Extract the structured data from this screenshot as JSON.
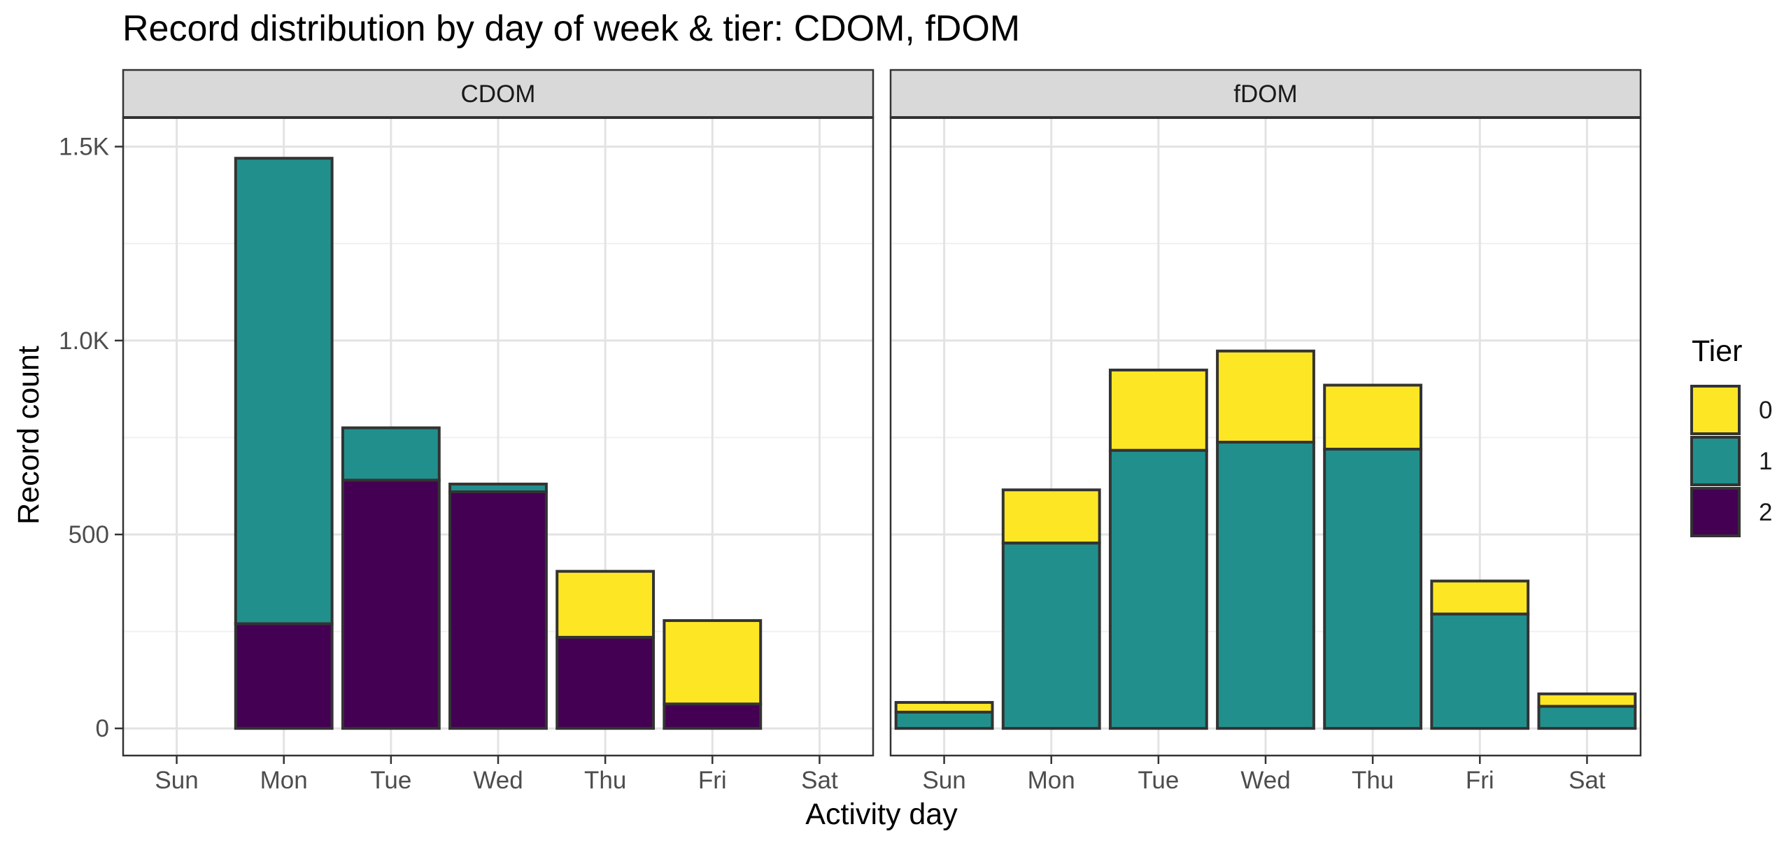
{
  "chart_data": {
    "type": "bar",
    "stacked": true,
    "title": "Record distribution by day of week & tier: CDOM, fDOM",
    "xlabel": "Activity day",
    "ylabel": "Record count",
    "ylim": [
      -70,
      1575
    ],
    "yticks": [
      0,
      500,
      1000,
      1500
    ],
    "ytick_labels": [
      "0",
      "500",
      "1.0K",
      "1.5K"
    ],
    "grid": true,
    "categories": [
      "Sun",
      "Mon",
      "Tue",
      "Wed",
      "Thu",
      "Fri",
      "Sat"
    ],
    "legend": {
      "title": "Tier",
      "position": "right",
      "entries": [
        {
          "label": "0",
          "color": "#FDE725"
        },
        {
          "label": "1",
          "color": "#21908C"
        },
        {
          "label": "2",
          "color": "#440154"
        }
      ]
    },
    "stack_order": [
      "2",
      "1",
      "0"
    ],
    "panels": [
      {
        "name": "CDOM",
        "series": [
          {
            "name": "0",
            "values": [
              0,
              0,
              0,
              0,
              170,
              215,
              0
            ]
          },
          {
            "name": "1",
            "values": [
              0,
              1200,
              135,
              20,
              0,
              0,
              0
            ]
          },
          {
            "name": "2",
            "values": [
              0,
              270,
              640,
              610,
              235,
              63,
              0
            ]
          }
        ]
      },
      {
        "name": "fDOM",
        "series": [
          {
            "name": "0",
            "values": [
              25,
              137,
              207,
              235,
              165,
              85,
              32
            ]
          },
          {
            "name": "1",
            "values": [
              42,
              478,
              717,
              738,
              720,
              295,
              57
            ]
          },
          {
            "name": "2",
            "values": [
              0,
              0,
              0,
              0,
              0,
              0,
              0
            ]
          }
        ]
      }
    ]
  }
}
